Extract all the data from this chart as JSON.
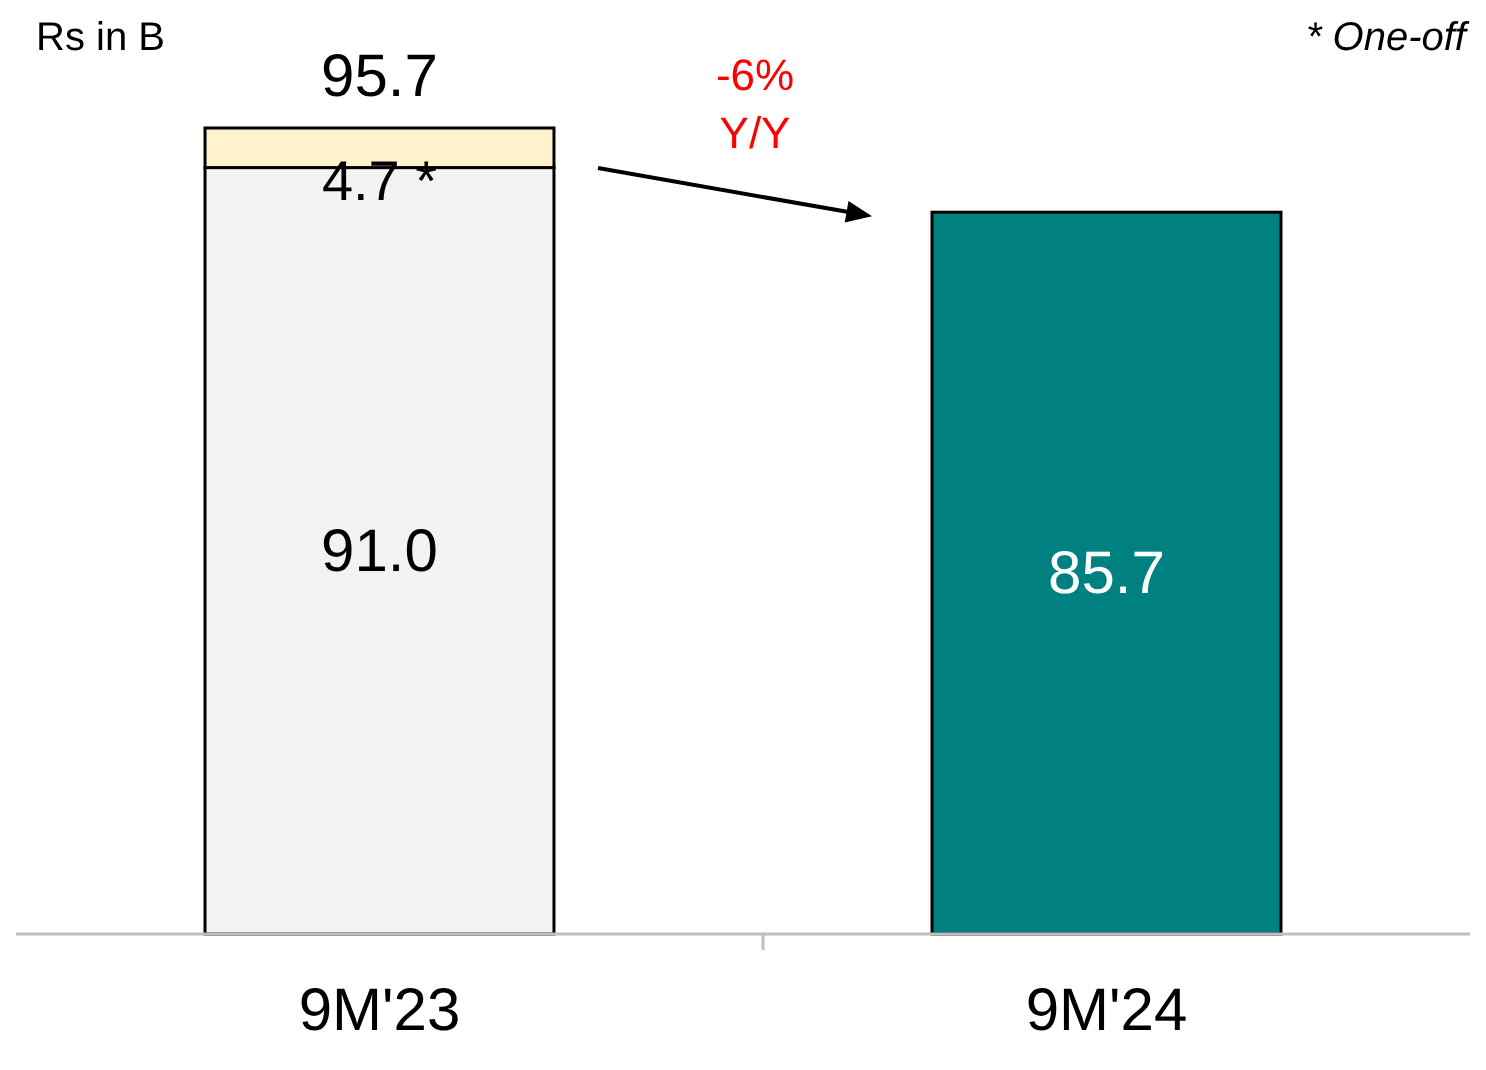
{
  "chart_data": {
    "type": "bar",
    "stacked": true,
    "categories": [
      "9M'23",
      "9M'24"
    ],
    "series": [
      {
        "colors": [
          "#f2f2f2",
          "#008080"
        ],
        "values": [
          91.0,
          85.7
        ],
        "value_labels": [
          "91.0",
          "85.7"
        ]
      },
      {
        "colors": [
          "#fff2cc",
          null
        ],
        "values": [
          4.7,
          null
        ],
        "value_labels": [
          "4.7 *",
          null
        ]
      }
    ],
    "totals": [
      "95.7",
      null
    ],
    "annotations": [
      "Rs in B",
      "* One-off",
      "-6%\nY/Y"
    ]
  }
}
